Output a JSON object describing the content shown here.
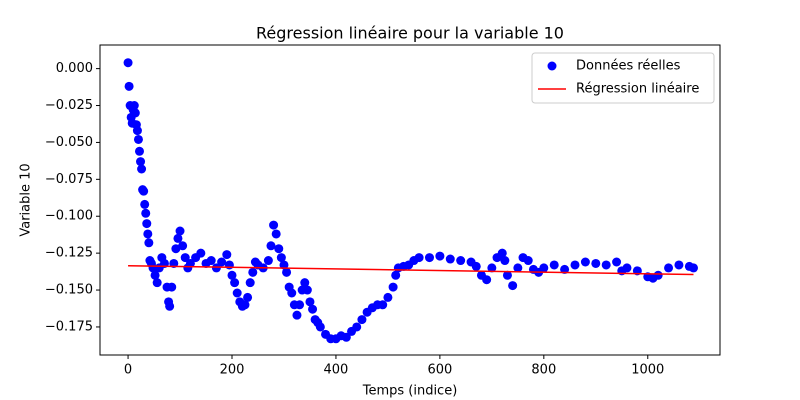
{
  "chart_data": {
    "type": "scatter",
    "title": "Régression linéaire pour la variable 10",
    "x_label": "Temps (indice)",
    "y_label": "Variable 10",
    "xlim": [
      -54,
      1139
    ],
    "ylim": [
      -0.194,
      0.016
    ],
    "xticks": [
      0,
      200,
      400,
      600,
      800,
      1000
    ],
    "yticks": [
      {
        "value": 0,
        "label": "0.000"
      },
      {
        "value": -0.025,
        "label": "−0.025"
      },
      {
        "value": -0.05,
        "label": "−0.050"
      },
      {
        "value": -0.075,
        "label": "−0.075"
      },
      {
        "value": -0.1,
        "label": "−0.100"
      },
      {
        "value": -0.125,
        "label": "−0.125"
      },
      {
        "value": -0.15,
        "label": "−0.150"
      },
      {
        "value": -0.175,
        "label": "−0.175"
      }
    ],
    "grid": false,
    "legend": "upper right",
    "series": [
      {
        "name": "Données réelles",
        "type": "scatter",
        "color": "#0000ff",
        "x": [
          0,
          2,
          4,
          6,
          8,
          10,
          12,
          14,
          16,
          18,
          20,
          22,
          24,
          26,
          28,
          30,
          32,
          34,
          36,
          38,
          40,
          42,
          45,
          48,
          52,
          56,
          60,
          65,
          70,
          75,
          78,
          80,
          84,
          88,
          92,
          96,
          100,
          105,
          110,
          115,
          120,
          130,
          140,
          150,
          160,
          170,
          180,
          190,
          195,
          200,
          205,
          210,
          215,
          220,
          225,
          230,
          235,
          240,
          245,
          250,
          260,
          270,
          275,
          280,
          285,
          290,
          295,
          300,
          305,
          310,
          315,
          320,
          325,
          330,
          335,
          340,
          345,
          350,
          355,
          360,
          365,
          370,
          380,
          390,
          400,
          410,
          420,
          430,
          440,
          450,
          460,
          470,
          480,
          490,
          500,
          510,
          515,
          520,
          530,
          540,
          550,
          560,
          580,
          600,
          620,
          640,
          660,
          670,
          680,
          690,
          700,
          710,
          720,
          725,
          730,
          740,
          750,
          760,
          770,
          780,
          790,
          800,
          820,
          840,
          860,
          880,
          900,
          920,
          940,
          950,
          960,
          980,
          1000,
          1010,
          1020,
          1040,
          1060,
          1080,
          1088
        ],
        "values": [
          0.004,
          -0.012,
          -0.025,
          -0.033,
          -0.037,
          -0.028,
          -0.025,
          -0.03,
          -0.038,
          -0.042,
          -0.048,
          -0.056,
          -0.063,
          -0.068,
          -0.082,
          -0.083,
          -0.092,
          -0.098,
          -0.105,
          -0.112,
          -0.118,
          -0.13,
          -0.132,
          -0.135,
          -0.14,
          -0.145,
          -0.135,
          -0.128,
          -0.132,
          -0.148,
          -0.158,
          -0.161,
          -0.148,
          -0.132,
          -0.122,
          -0.115,
          -0.11,
          -0.12,
          -0.128,
          -0.135,
          -0.132,
          -0.128,
          -0.125,
          -0.132,
          -0.13,
          -0.135,
          -0.131,
          -0.126,
          -0.133,
          -0.14,
          -0.145,
          -0.152,
          -0.158,
          -0.161,
          -0.16,
          -0.155,
          -0.145,
          -0.138,
          -0.131,
          -0.133,
          -0.135,
          -0.13,
          -0.12,
          -0.106,
          -0.112,
          -0.122,
          -0.128,
          -0.133,
          -0.138,
          -0.148,
          -0.152,
          -0.16,
          -0.167,
          -0.16,
          -0.15,
          -0.145,
          -0.15,
          -0.158,
          -0.163,
          -0.17,
          -0.172,
          -0.175,
          -0.18,
          -0.183,
          -0.183,
          -0.181,
          -0.182,
          -0.178,
          -0.175,
          -0.17,
          -0.165,
          -0.162,
          -0.16,
          -0.16,
          -0.155,
          -0.148,
          -0.14,
          -0.135,
          -0.134,
          -0.133,
          -0.13,
          -0.128,
          -0.128,
          -0.127,
          -0.129,
          -0.13,
          -0.131,
          -0.134,
          -0.14,
          -0.143,
          -0.135,
          -0.128,
          -0.125,
          -0.13,
          -0.14,
          -0.147,
          -0.135,
          -0.128,
          -0.13,
          -0.136,
          -0.138,
          -0.135,
          -0.133,
          -0.136,
          -0.133,
          -0.131,
          -0.132,
          -0.133,
          -0.131,
          -0.137,
          -0.135,
          -0.137,
          -0.141,
          -0.142,
          -0.14,
          -0.135,
          -0.133,
          -0.134,
          -0.135
        ]
      },
      {
        "name": "Régression linéaire",
        "type": "line",
        "color": "#ff0000",
        "x": [
          0,
          1088
        ],
        "values": [
          -0.1335,
          -0.1395
        ]
      }
    ]
  }
}
